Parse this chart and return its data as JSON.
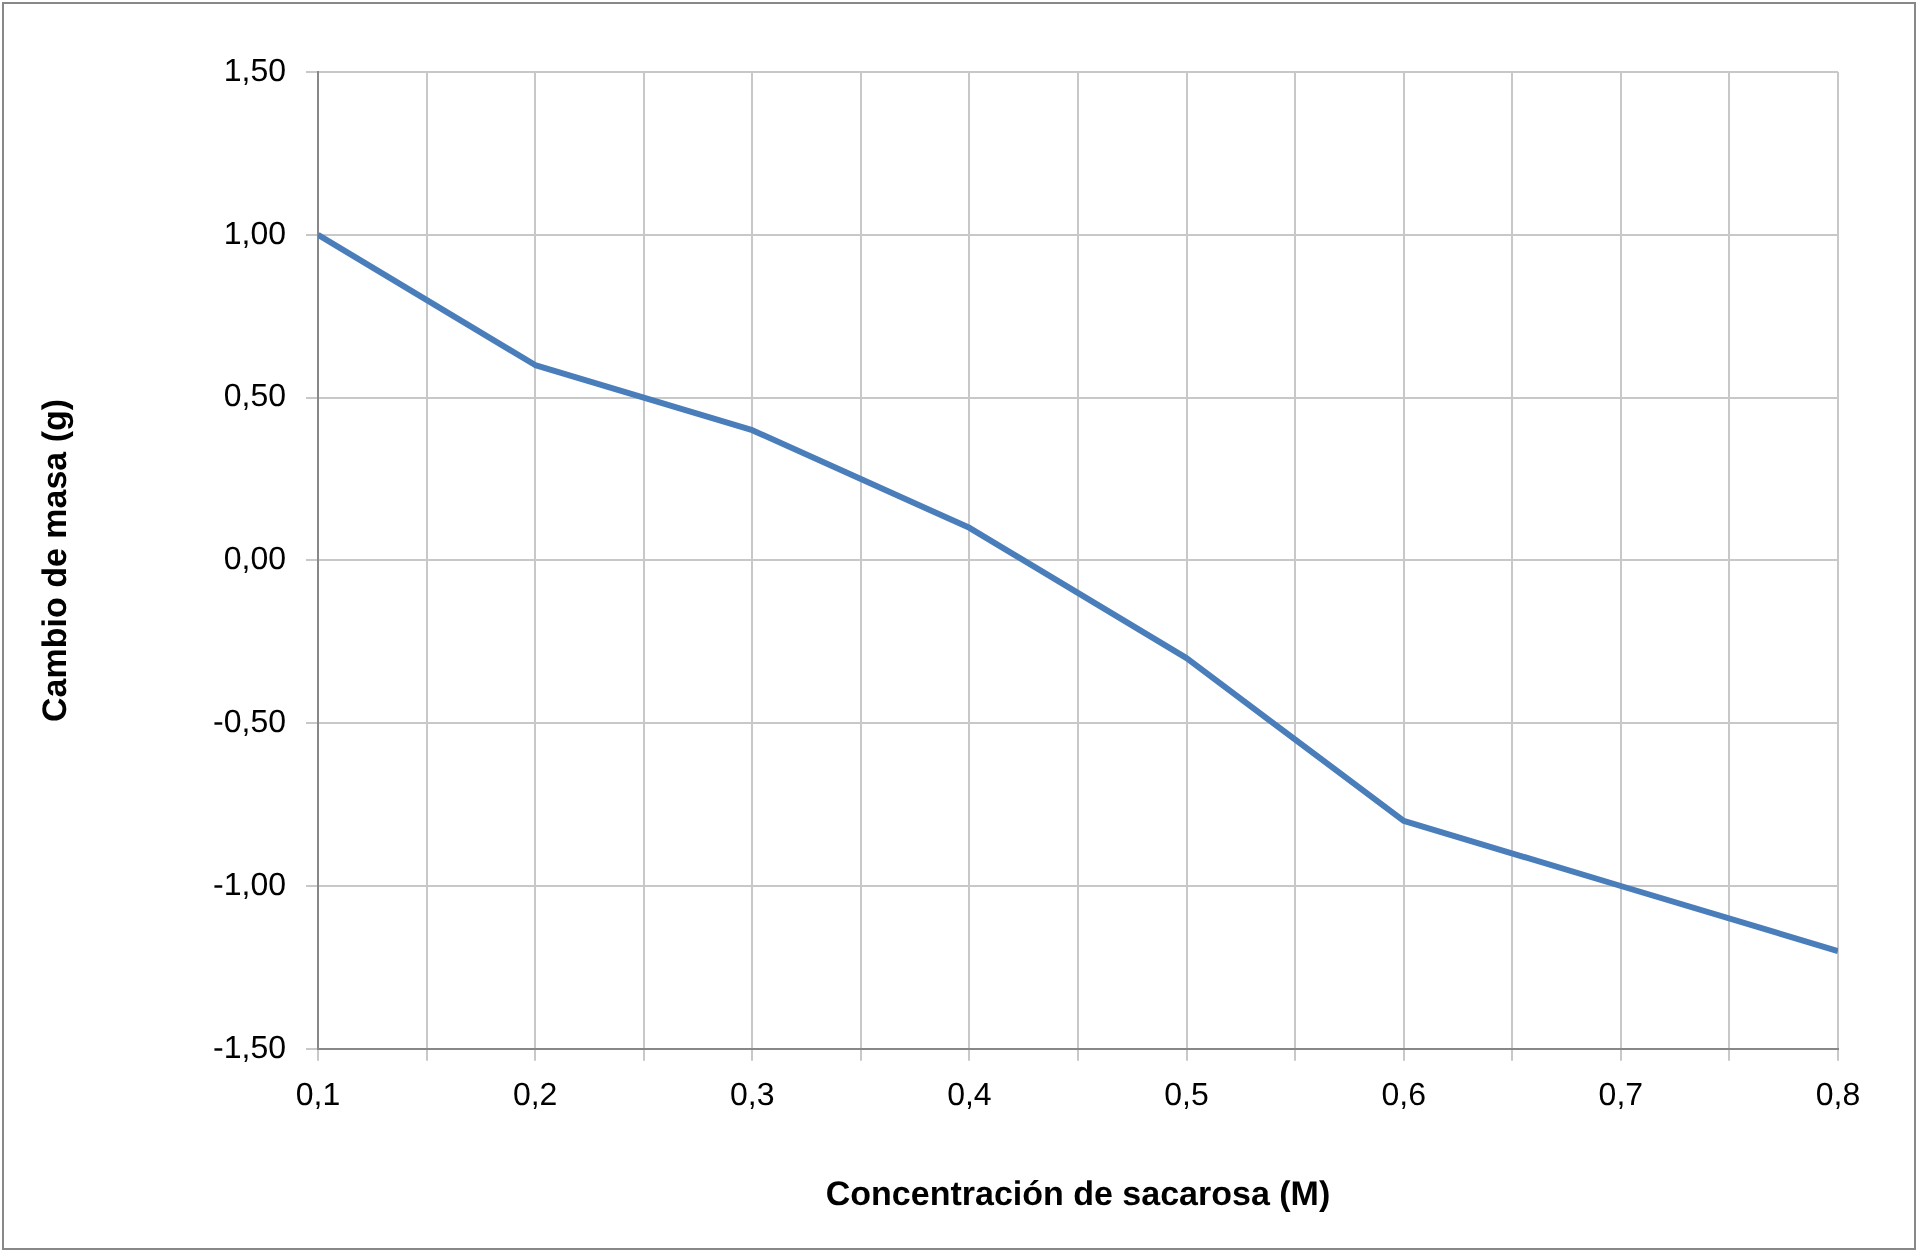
{
  "chart_data": {
    "type": "line",
    "xlabel": "Concentración de sacarosa (M)",
    "ylabel": "Cambio de masa (g)",
    "x": [
      0.1,
      0.2,
      0.3,
      0.4,
      0.5,
      0.6,
      0.7,
      0.8
    ],
    "series": [
      {
        "color": "#4a7ebb",
        "values": [
          1.0,
          0.6,
          0.4,
          0.1,
          -0.3,
          -0.8,
          -1.0,
          -1.2
        ]
      }
    ],
    "xlim": [
      0.1,
      0.8
    ],
    "xticks": [
      {
        "value": 0.1,
        "label": "0,1"
      },
      {
        "value": 0.15,
        "label": null
      },
      {
        "value": 0.2,
        "label": "0,2"
      },
      {
        "value": 0.25,
        "label": null
      },
      {
        "value": 0.3,
        "label": "0,3"
      },
      {
        "value": 0.35,
        "label": null
      },
      {
        "value": 0.4,
        "label": "0,4"
      },
      {
        "value": 0.45,
        "label": null
      },
      {
        "value": 0.5,
        "label": "0,5"
      },
      {
        "value": 0.55,
        "label": null
      },
      {
        "value": 0.6,
        "label": "0,6"
      },
      {
        "value": 0.65,
        "label": null
      },
      {
        "value": 0.7,
        "label": "0,7"
      },
      {
        "value": 0.75,
        "label": null
      },
      {
        "value": 0.8,
        "label": "0,8"
      }
    ],
    "ylim": [
      -1.5,
      1.5
    ],
    "yticks": [
      {
        "value": -1.5,
        "label": "-1,50"
      },
      {
        "value": -1.0,
        "label": "-1,00"
      },
      {
        "value": -0.5,
        "label": "-0,50"
      },
      {
        "value": 0,
        "label": "0,00"
      },
      {
        "value": 0.5,
        "label": "0,50"
      },
      {
        "value": 1.0,
        "label": "1,00"
      },
      {
        "value": 1.5,
        "label": "1,50"
      }
    ],
    "grid": true
  }
}
